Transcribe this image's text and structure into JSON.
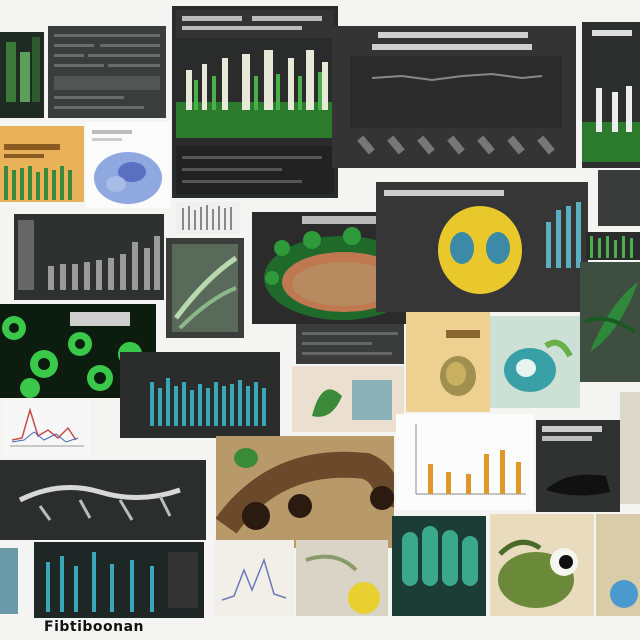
{
  "caption": "Fibtiboonan",
  "colors": {
    "background": "#f4f4f2",
    "dark_panel": "#2a2c2c",
    "green": "#2e9a3a",
    "teal": "#3aa7b8",
    "orange": "#e0962a",
    "beige": "#e8d4a8"
  },
  "tiles": [
    {
      "id": "green-bar-panel",
      "icon": "green-bar-chart"
    },
    {
      "id": "line-trend-panel",
      "icon": "line-chart"
    },
    {
      "id": "orange-bar-panel",
      "icon": "bar-chart"
    },
    {
      "id": "blue-organ-illustration",
      "icon": "organ-illustration"
    },
    {
      "id": "grey-bar-panel",
      "icon": "bar-chart"
    },
    {
      "id": "moss-cross-section",
      "icon": "cross-section-illustration"
    },
    {
      "id": "yellow-blob-panel",
      "icon": "organism-illustration"
    },
    {
      "id": "green-cells-panel",
      "icon": "cell-micrograph"
    },
    {
      "id": "teal-bar-panel",
      "icon": "bar-chart"
    },
    {
      "id": "orange-scatter-panel",
      "icon": "bar-chart"
    },
    {
      "id": "tube-illustration",
      "icon": "tube-illustration"
    },
    {
      "id": "teal-columns-panel",
      "icon": "bar-chart"
    },
    {
      "id": "creature-illustration",
      "icon": "creature-illustration"
    }
  ]
}
